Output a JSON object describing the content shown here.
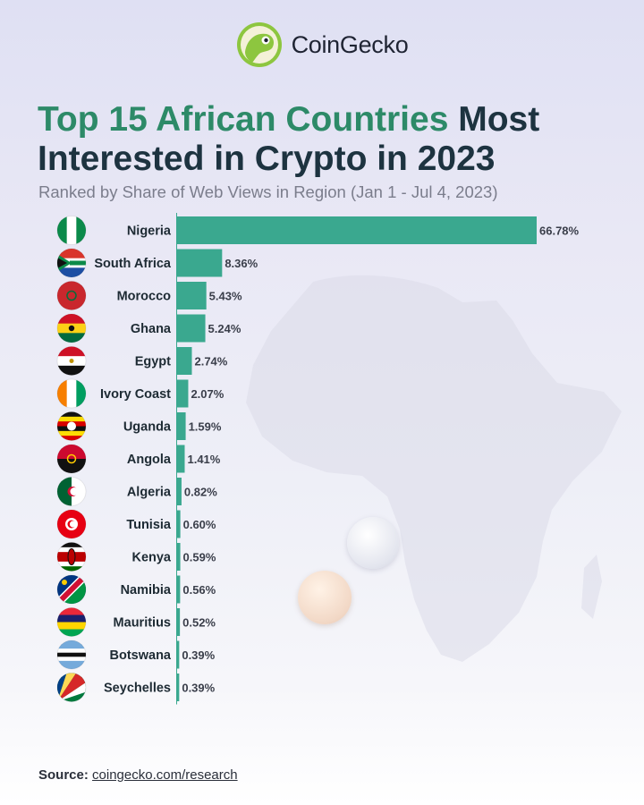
{
  "brand": {
    "name": "CoinGecko",
    "icon": "gecko-logo-icon"
  },
  "title_accent": "Top 15 African Countries",
  "title_rest_1": " Most",
  "title_rest_2": "Interested in Crypto in 2023",
  "subtitle": "Ranked by Share of Web Views in Region (Jan 1 - Jul 4, 2023)",
  "source": {
    "label": "Source:",
    "link": "coingecko.com/research"
  },
  "colors": {
    "bar": "#3aa88f",
    "accent_title": "#2d8a68",
    "title": "#1d3340"
  },
  "chart_data": {
    "type": "bar",
    "orientation": "horizontal",
    "title": "Top 15 African Countries Most Interested in Crypto in 2023",
    "subtitle": "Ranked by Share of Web Views in Region (Jan 1 - Jul 4, 2023)",
    "categories": [
      "Nigeria",
      "South Africa",
      "Morocco",
      "Ghana",
      "Egypt",
      "Ivory Coast",
      "Uganda",
      "Angola",
      "Algeria",
      "Tunisia",
      "Kenya",
      "Namibia",
      "Mauritius",
      "Botswana",
      "Seychelles"
    ],
    "values": [
      66.78,
      8.36,
      5.43,
      5.24,
      2.74,
      2.07,
      1.59,
      1.41,
      0.82,
      0.6,
      0.59,
      0.56,
      0.52,
      0.39,
      0.39
    ],
    "labels": [
      "66.78%",
      "8.36%",
      "5.43%",
      "5.24%",
      "2.74%",
      "2.07%",
      "1.59%",
      "1.41%",
      "0.82%",
      "0.60%",
      "0.59%",
      "0.56%",
      "0.52%",
      "0.39%",
      "0.39%"
    ],
    "unit": "%",
    "xlim": [
      0,
      66.78
    ],
    "grid": false,
    "legend": "none"
  }
}
